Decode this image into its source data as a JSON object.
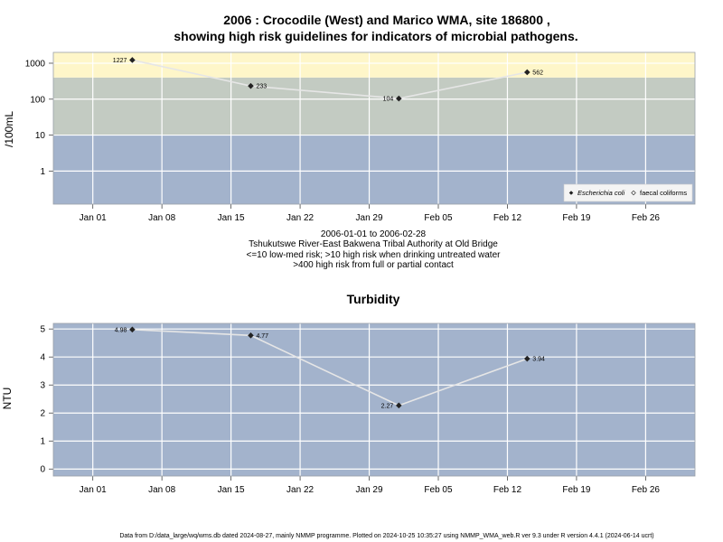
{
  "chart_data": [
    {
      "type": "line",
      "title_line1": "2006 : Crocodile (West) and Marico WMA, site 186800 ,",
      "title_line2": "showing high risk guidelines for indicators of microbial pathogens.",
      "ylabel": "/100mL",
      "y_scale": "log",
      "ylim": [
        0.12,
        2000
      ],
      "y_ticks": [
        "1",
        "10",
        "100",
        "1000"
      ],
      "y_tick_values": [
        1,
        10,
        100,
        1000
      ],
      "x_ticks": [
        "Jan 01",
        "Jan 08",
        "Jan 15",
        "Jan 22",
        "Jan 29",
        "Feb 05",
        "Feb 12",
        "Feb 19",
        "Feb 26"
      ],
      "x_tick_dates": [
        "2006-01-01",
        "2006-01-08",
        "2006-01-15",
        "2006-01-22",
        "2006-01-29",
        "2006-02-05",
        "2006-02-12",
        "2006-02-19",
        "2006-02-26"
      ],
      "xlim": [
        "2005-12-28",
        "2006-03-03"
      ],
      "bands": [
        {
          "from": 0.12,
          "to": 10,
          "color": "#a3b3cc"
        },
        {
          "from": 10,
          "to": 400,
          "color": "#c3cbc2"
        },
        {
          "from": 400,
          "to": 2000,
          "color": "#fef6c9"
        }
      ],
      "grid": true,
      "series": [
        {
          "name": "Escherichia coli",
          "x": [
            "2006-01-05",
            "2006-01-17",
            "2006-02-01",
            "2006-02-14"
          ],
          "values": [
            1227,
            233,
            104,
            562
          ],
          "labels": [
            "1227",
            "233",
            "104",
            "562"
          ]
        },
        {
          "name": "faecal coliforms",
          "x": [],
          "values": [],
          "labels": []
        }
      ],
      "legend_position": "bottom-right",
      "notes": [
        "2006-01-01 to 2006-02-28",
        "Tshukutswe River-East Bakwena Tribal Authority at Old Bridge",
        "<=10 low-med risk; >10 high risk when drinking untreated water",
        ">400 high risk from full or partial contact"
      ]
    },
    {
      "type": "line",
      "title": "Turbidity",
      "ylabel": "NTU",
      "ylim": [
        -0.25,
        5.2
      ],
      "y_ticks": [
        "0",
        "1",
        "2",
        "3",
        "4",
        "5"
      ],
      "y_tick_values": [
        0,
        1,
        2,
        3,
        4,
        5
      ],
      "x_ticks": [
        "Jan 01",
        "Jan 08",
        "Jan 15",
        "Jan 22",
        "Jan 29",
        "Feb 05",
        "Feb 12",
        "Feb 19",
        "Feb 26"
      ],
      "x_tick_dates": [
        "2006-01-01",
        "2006-01-08",
        "2006-01-15",
        "2006-01-22",
        "2006-01-29",
        "2006-02-05",
        "2006-02-12",
        "2006-02-19",
        "2006-02-26"
      ],
      "xlim": [
        "2005-12-28",
        "2006-03-03"
      ],
      "background_color": "#a3b3cc",
      "grid": true,
      "series": [
        {
          "x": [
            "2006-01-05",
            "2006-01-17",
            "2006-02-01",
            "2006-02-14"
          ],
          "values": [
            4.98,
            4.77,
            2.27,
            3.94
          ],
          "labels": [
            "4.98",
            "4.77",
            "2.27",
            "3.94"
          ]
        }
      ]
    }
  ],
  "footer": "Data from D:/data_large/wq/wms.db dated 2024-08-27, mainly NMMP programme. Plotted on 2024-10-25 10:35:27 using NMMP_WMA_web.R ver 9.3 under R version 4.4.1 (2024-06-14 ucrt)",
  "colors": {
    "line": "#e6e6e6",
    "grid": "#ffffff",
    "point": "#222222"
  }
}
